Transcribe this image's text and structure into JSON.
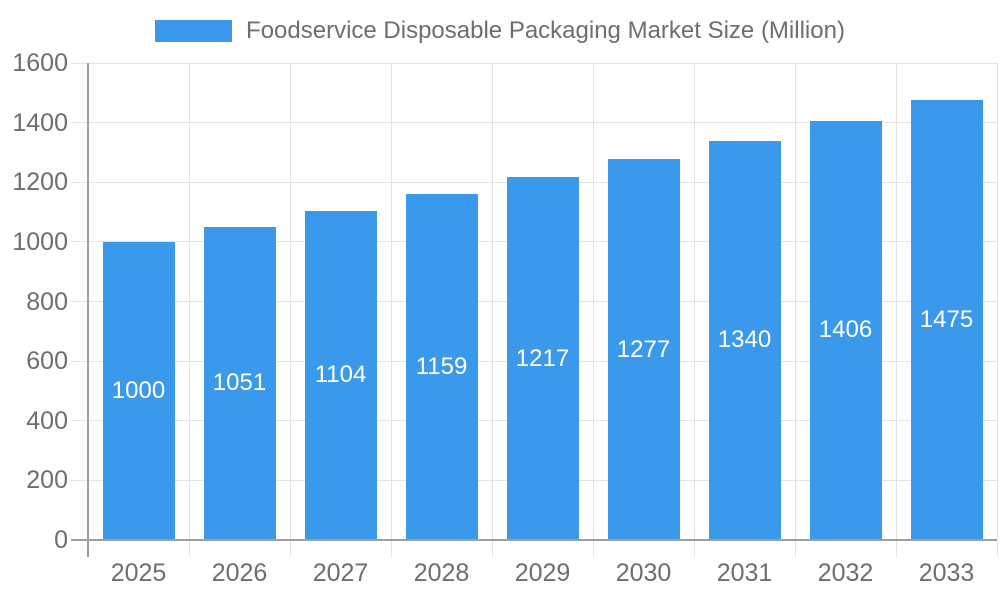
{
  "chart_data": {
    "type": "bar",
    "title": "Foodservice Disposable Packaging Market Size (Million)",
    "categories": [
      "2025",
      "2026",
      "2027",
      "2028",
      "2029",
      "2030",
      "2031",
      "2032",
      "2033"
    ],
    "values": [
      1000,
      1051,
      1104,
      1159,
      1217,
      1277,
      1340,
      1406,
      1475
    ],
    "ylim": [
      0,
      1600
    ],
    "yticks": [
      0,
      200,
      400,
      600,
      800,
      1000,
      1200,
      1400,
      1600
    ],
    "grid": true,
    "legend_position": "top",
    "bar_labels_visible": true,
    "colors": {
      "bar": "#3B99EC",
      "bar_label": "#FFFFFF",
      "grid": "#E3E3E3",
      "axis": "#9E9E9E",
      "text": "#6E6E6E"
    }
  }
}
